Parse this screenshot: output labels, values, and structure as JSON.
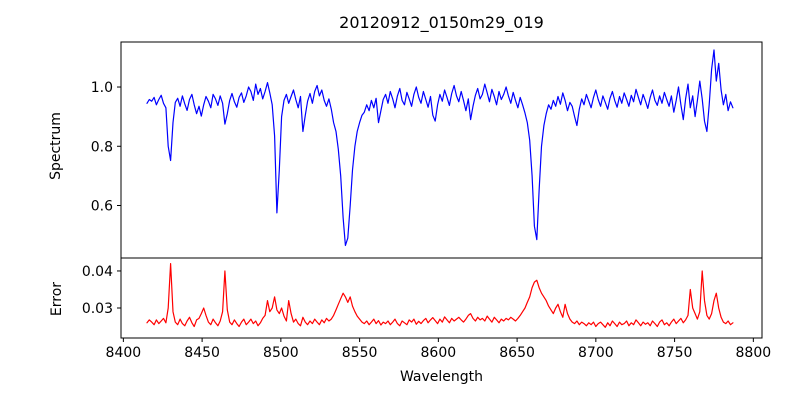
{
  "title": "20120912_0150m29_019",
  "chart_data": {
    "type": "line",
    "title": "20120912_0150m29_019",
    "xlabel": "Wavelength",
    "grid": false,
    "legend": null,
    "x_axis": {
      "lim": [
        8398.5,
        8805.5
      ],
      "ticks": [
        8400,
        8450,
        8500,
        8550,
        8600,
        8650,
        8700,
        8750,
        8800
      ],
      "tick_labels": [
        "8400",
        "8450",
        "8500",
        "8550",
        "8600",
        "8650",
        "8700",
        "8750",
        "8800"
      ]
    },
    "x_start": 8415,
    "x_step": 1.5,
    "panels": [
      {
        "name": "spectrum",
        "ylabel": "Spectrum",
        "color": "#0000ff",
        "ylim": [
          0.4228,
          1.152
        ],
        "yticks": [
          0.6,
          0.8,
          1.0
        ],
        "ytick_labels": [
          "0.6",
          "0.8",
          "1.0"
        ],
        "features_note": "absorption lines near 8429, 8498, 8542, 8662; emission-like spike near 8775",
        "values": [
          0.945,
          0.958,
          0.952,
          0.965,
          0.94,
          0.958,
          0.972,
          0.945,
          0.93,
          0.8,
          0.752,
          0.88,
          0.948,
          0.962,
          0.935,
          0.97,
          0.943,
          0.921,
          0.958,
          0.975,
          0.94,
          0.91,
          0.935,
          0.902,
          0.94,
          0.968,
          0.952,
          0.93,
          0.975,
          0.96,
          0.938,
          0.97,
          0.945,
          0.875,
          0.91,
          0.955,
          0.978,
          0.95,
          0.932,
          0.965,
          0.98,
          0.948,
          0.97,
          1.0,
          0.985,
          0.955,
          1.01,
          0.975,
          0.995,
          0.96,
          0.985,
          1.015,
          0.98,
          0.94,
          0.835,
          0.575,
          0.72,
          0.9,
          0.955,
          0.975,
          0.945,
          0.968,
          0.99,
          0.958,
          0.93,
          0.968,
          0.85,
          0.905,
          0.952,
          0.978,
          0.945,
          0.985,
          1.005,
          0.97,
          0.99,
          0.955,
          0.935,
          0.96,
          0.925,
          0.88,
          0.85,
          0.79,
          0.7,
          0.56,
          0.465,
          0.49,
          0.6,
          0.72,
          0.8,
          0.85,
          0.88,
          0.905,
          0.915,
          0.94,
          0.92,
          0.955,
          0.93,
          0.962,
          0.88,
          0.92,
          0.958,
          0.975,
          0.945,
          0.985,
          0.96,
          0.93,
          0.97,
          0.995,
          0.955,
          0.94,
          0.982,
          0.96,
          0.935,
          0.975,
          1.0,
          0.965,
          0.945,
          0.985,
          0.958,
          0.932,
          0.968,
          0.905,
          0.885,
          0.94,
          0.975,
          0.952,
          0.99,
          0.965,
          0.938,
          0.978,
          1.005,
          0.97,
          0.95,
          0.985,
          0.955,
          0.92,
          0.96,
          0.89,
          0.935,
          0.972,
          0.995,
          0.96,
          0.975,
          1.01,
          0.98,
          0.95,
          0.992,
          0.968,
          0.94,
          0.985,
          0.958,
          0.975,
          1.0,
          0.97,
          0.945,
          0.982,
          0.955,
          0.93,
          0.965,
          0.94,
          0.912,
          0.88,
          0.82,
          0.7,
          0.53,
          0.485,
          0.65,
          0.8,
          0.87,
          0.91,
          0.94,
          0.925,
          0.955,
          0.935,
          0.968,
          0.942,
          0.98,
          0.955,
          0.92,
          0.948,
          0.935,
          0.9,
          0.87,
          0.925,
          0.96,
          0.94,
          0.975,
          0.952,
          0.93,
          0.965,
          0.99,
          0.958,
          0.935,
          0.97,
          0.948,
          0.925,
          0.962,
          0.985,
          0.955,
          0.932,
          0.968,
          0.945,
          0.98,
          0.958,
          0.935,
          0.972,
          0.95,
          0.992,
          0.965,
          0.94,
          0.975,
          0.952,
          0.928,
          0.965,
          0.99,
          0.955,
          0.938,
          0.97,
          0.945,
          0.982,
          0.958,
          0.935,
          0.97,
          0.915,
          0.955,
          1.0,
          0.94,
          0.89,
          0.96,
          1.01,
          0.93,
          0.97,
          0.9,
          0.955,
          1.02,
          0.96,
          0.885,
          0.85,
          0.94,
          1.06,
          1.125,
          1.02,
          1.08,
          0.99,
          0.94,
          0.975,
          0.92,
          0.95,
          0.93
        ]
      },
      {
        "name": "error",
        "ylabel": "Error",
        "color": "#ff0000",
        "ylim": [
          0.0219,
          0.0435
        ],
        "yticks": [
          0.03,
          0.04
        ],
        "ytick_labels": [
          "0.03",
          "0.04"
        ],
        "features_note": "error spikes near 8430, 8464, 8496-8505, 8540, 8660, 8760, 8768, 8777",
        "values": [
          0.026,
          0.0268,
          0.0262,
          0.0255,
          0.0268,
          0.0258,
          0.0265,
          0.0272,
          0.026,
          0.03,
          0.042,
          0.029,
          0.0262,
          0.0255,
          0.027,
          0.0258,
          0.0252,
          0.0265,
          0.0275,
          0.026,
          0.025,
          0.0268,
          0.0272,
          0.0285,
          0.03,
          0.028,
          0.0262,
          0.0255,
          0.027,
          0.026,
          0.0252,
          0.0265,
          0.029,
          0.04,
          0.0295,
          0.0262,
          0.0255,
          0.0268,
          0.0258,
          0.025,
          0.0262,
          0.027,
          0.0255,
          0.0262,
          0.027,
          0.0258,
          0.0265,
          0.0252,
          0.026,
          0.0272,
          0.028,
          0.032,
          0.029,
          0.03,
          0.033,
          0.0295,
          0.0285,
          0.03,
          0.0278,
          0.0265,
          0.032,
          0.0285,
          0.0262,
          0.027,
          0.0258,
          0.0252,
          0.0275,
          0.0262,
          0.0255,
          0.0265,
          0.0258,
          0.027,
          0.0262,
          0.0255,
          0.0268,
          0.026,
          0.0272,
          0.0265,
          0.027,
          0.028,
          0.0295,
          0.031,
          0.0325,
          0.034,
          0.033,
          0.0315,
          0.033,
          0.0305,
          0.029,
          0.0278,
          0.027,
          0.0262,
          0.0258,
          0.0265,
          0.0255,
          0.0262,
          0.027,
          0.0258,
          0.0266,
          0.0254,
          0.0262,
          0.0258,
          0.0265,
          0.0255,
          0.0262,
          0.027,
          0.0258,
          0.0252,
          0.0265,
          0.026,
          0.0255,
          0.0268,
          0.0262,
          0.027,
          0.0256,
          0.0264,
          0.0258,
          0.0266,
          0.0272,
          0.026,
          0.0268,
          0.0274,
          0.0266,
          0.0258,
          0.027,
          0.0262,
          0.0276,
          0.0268,
          0.026,
          0.0272,
          0.0265,
          0.027,
          0.0275,
          0.0268,
          0.0262,
          0.027,
          0.028,
          0.0285,
          0.0272,
          0.0265,
          0.0275,
          0.0268,
          0.0272,
          0.0265,
          0.0278,
          0.027,
          0.0262,
          0.0275,
          0.0268,
          0.026,
          0.027,
          0.0265,
          0.0272,
          0.0268,
          0.0275,
          0.027,
          0.0265,
          0.0272,
          0.028,
          0.029,
          0.03,
          0.0315,
          0.033,
          0.0355,
          0.037,
          0.0375,
          0.0355,
          0.034,
          0.033,
          0.032,
          0.0305,
          0.0295,
          0.0285,
          0.03,
          0.031,
          0.029,
          0.0275,
          0.031,
          0.0285,
          0.027,
          0.0262,
          0.0258,
          0.0265,
          0.0255,
          0.0262,
          0.0258,
          0.0252,
          0.026,
          0.0255,
          0.0262,
          0.025,
          0.0258,
          0.0262,
          0.0255,
          0.0248,
          0.026,
          0.0252,
          0.0265,
          0.0258,
          0.025,
          0.0262,
          0.0255,
          0.0258,
          0.0265,
          0.0252,
          0.026,
          0.0255,
          0.0268,
          0.026,
          0.0252,
          0.0262,
          0.0256,
          0.026,
          0.0252,
          0.0265,
          0.0258,
          0.025,
          0.0262,
          0.0268,
          0.0255,
          0.026,
          0.0252,
          0.0262,
          0.027,
          0.0258,
          0.0265,
          0.0272,
          0.026,
          0.0268,
          0.028,
          0.035,
          0.03,
          0.0285,
          0.027,
          0.029,
          0.04,
          0.032,
          0.028,
          0.027,
          0.0285,
          0.032,
          0.034,
          0.03,
          0.0275,
          0.0262,
          0.0258,
          0.0265,
          0.0255,
          0.026
        ]
      }
    ],
    "colors": {
      "spectrum_line": "#0000ff",
      "error_line": "#ff0000",
      "spine": "#000000",
      "background": "#ffffff"
    }
  }
}
